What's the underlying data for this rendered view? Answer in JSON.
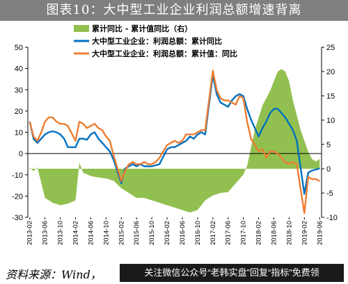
{
  "header": {
    "title": "图表10：大中型工业企业利润总额增速背离"
  },
  "footer": {
    "source": "资料来源：Wind，",
    "promo": "关注微信公众号“老韩实盘”回复“指标”免费领"
  },
  "chart_data": {
    "type": "line",
    "legend_position": "top",
    "grid": false,
    "x_labels": [
      "2013-02",
      "2013-06",
      "2013-10",
      "2014-02",
      "2014-06",
      "2014-10",
      "2015-02",
      "2015-06",
      "2015-10",
      "2016-02",
      "2016-06",
      "2016-10",
      "2017-02",
      "2017-06",
      "2017-10",
      "2018-02",
      "2018-06",
      "2018-10",
      "2019-02",
      "2019-06"
    ],
    "ylim_left": [
      -30,
      50
    ],
    "yticks_left": [
      -30,
      -20,
      -10,
      0,
      10,
      20,
      30,
      40,
      50
    ],
    "ylim_right": [
      -10,
      25
    ],
    "yticks_right": [
      -10,
      -5,
      0,
      5,
      10,
      15,
      20,
      25
    ],
    "colors": {
      "area": "#92c050",
      "blue": "#0070c0",
      "orange": "#ed7d31"
    },
    "series": [
      {
        "name": "累计同比 - 累计值同比（右）",
        "axis": "right",
        "style": "area",
        "x": [
          "2013-02",
          "2013-03",
          "2013-04",
          "2013-06",
          "2013-08",
          "2013-10",
          "2013-12",
          "2014-02",
          "2014-03",
          "2014-04",
          "2014-06",
          "2014-08",
          "2014-10",
          "2014-12",
          "2015-02",
          "2015-04",
          "2015-06",
          "2015-08",
          "2015-10",
          "2015-12",
          "2016-02",
          "2016-04",
          "2016-06",
          "2016-08",
          "2016-10",
          "2016-12",
          "2017-02",
          "2017-04",
          "2017-06",
          "2017-08",
          "2017-10",
          "2017-11",
          "2018-01",
          "2018-03",
          "2018-05",
          "2018-06",
          "2018-07",
          "2018-08",
          "2018-09",
          "2018-10",
          "2018-11",
          "2019-01",
          "2019-03",
          "2019-04",
          "2019-05",
          "2019-06"
        ],
        "values": [
          0.3,
          -0.5,
          0.3,
          -6.0,
          -7.0,
          -7.5,
          -7.2,
          -6.5,
          1.2,
          -0.8,
          -1.5,
          -1.8,
          -2.0,
          -2.5,
          -4.0,
          -5.0,
          -6.0,
          -6.0,
          -6.5,
          -7.0,
          -7.5,
          -8.0,
          -8.5,
          -9.0,
          -8.5,
          -6.5,
          -5.5,
          -5.0,
          -4.8,
          -3.0,
          -1.2,
          0.6,
          8.0,
          13.0,
          16.0,
          18.0,
          20.0,
          20.5,
          20.0,
          18.0,
          14.0,
          8.0,
          3.5,
          2.0,
          1.5,
          2.0
        ]
      },
      {
        "name": "大中型工业企业：利润总额：累计同比",
        "axis": "left",
        "style": "line",
        "x": [
          "2013-02",
          "2013-03",
          "2013-04",
          "2013-05",
          "2013-06",
          "2013-07",
          "2013-08",
          "2013-09",
          "2013-10",
          "2013-11",
          "2013-12",
          "2014-02",
          "2014-03",
          "2014-04",
          "2014-05",
          "2014-06",
          "2014-07",
          "2014-08",
          "2014-09",
          "2014-10",
          "2014-11",
          "2014-12",
          "2015-02",
          "2015-03",
          "2015-04",
          "2015-05",
          "2015-06",
          "2015-07",
          "2015-08",
          "2015-09",
          "2015-10",
          "2015-11",
          "2015-12",
          "2016-02",
          "2016-03",
          "2016-04",
          "2016-05",
          "2016-06",
          "2016-07",
          "2016-08",
          "2016-09",
          "2016-10",
          "2016-11",
          "2016-12",
          "2017-02",
          "2017-03",
          "2017-04",
          "2017-05",
          "2017-06",
          "2017-07",
          "2017-08",
          "2017-09",
          "2017-10",
          "2017-11",
          "2017-12",
          "2018-02",
          "2018-03",
          "2018-04",
          "2018-05",
          "2018-06",
          "2018-07",
          "2018-08",
          "2018-09",
          "2018-10",
          "2018-11",
          "2018-12",
          "2019-02",
          "2019-03",
          "2019-04",
          "2019-05",
          "2019-06"
        ],
        "values": [
          15,
          7,
          5,
          7,
          9,
          10,
          10.5,
          10,
          9,
          7,
          3,
          3,
          7,
          7,
          6.5,
          9,
          10,
          7,
          5,
          3,
          1,
          -3,
          -14,
          -7,
          -6,
          -5,
          -6,
          -5,
          -6,
          -6,
          -6,
          -5.5,
          -5,
          2,
          3,
          3,
          4,
          5,
          6,
          8,
          7,
          9,
          10,
          9,
          37,
          28,
          24,
          23,
          22,
          25,
          27,
          28,
          27,
          21,
          16,
          8,
          12,
          15,
          19,
          21,
          21,
          19,
          17,
          14,
          11,
          6,
          -19,
          -9,
          -8,
          -7.5,
          -7
        ]
      },
      {
        "name": "大中型工业企业：利润总额：累计值：同比",
        "axis": "left",
        "style": "line",
        "x": [
          "2013-02",
          "2013-03",
          "2013-04",
          "2013-05",
          "2013-06",
          "2013-07",
          "2013-08",
          "2013-09",
          "2013-10",
          "2013-11",
          "2013-12",
          "2014-02",
          "2014-03",
          "2014-04",
          "2014-05",
          "2014-06",
          "2014-07",
          "2014-08",
          "2014-09",
          "2014-10",
          "2014-11",
          "2014-12",
          "2015-02",
          "2015-03",
          "2015-04",
          "2015-05",
          "2015-06",
          "2015-07",
          "2015-08",
          "2015-09",
          "2015-10",
          "2015-11",
          "2015-12",
          "2016-02",
          "2016-03",
          "2016-04",
          "2016-05",
          "2016-06",
          "2016-07",
          "2016-08",
          "2016-09",
          "2016-10",
          "2016-11",
          "2016-12",
          "2017-02",
          "2017-03",
          "2017-04",
          "2017-05",
          "2017-06",
          "2017-07",
          "2017-08",
          "2017-09",
          "2017-10",
          "2017-11",
          "2017-12",
          "2018-02",
          "2018-03",
          "2018-04",
          "2018-05",
          "2018-06",
          "2018-07",
          "2018-08",
          "2018-09",
          "2018-10",
          "2018-11",
          "2018-12",
          "2019-02",
          "2019-03",
          "2019-04",
          "2019-05",
          "2019-06"
        ],
        "values": [
          15,
          8,
          6,
          10,
          15,
          17,
          17,
          15,
          14,
          14,
          13,
          6,
          15,
          14,
          12,
          13,
          14,
          12,
          11,
          8,
          6,
          -1,
          -13,
          -8,
          -5,
          -4,
          -5,
          -5,
          -4,
          -5,
          -5,
          -4,
          -2,
          4,
          5,
          6,
          5,
          6,
          9,
          9,
          9,
          10,
          11,
          11,
          39,
          30,
          26,
          25,
          25,
          24,
          23,
          27,
          26,
          15,
          7,
          1,
          2,
          -2,
          1,
          1,
          0,
          -2,
          -4,
          -5,
          -4,
          -5,
          -28,
          -11,
          -12,
          -12,
          -13
        ]
      }
    ]
  }
}
